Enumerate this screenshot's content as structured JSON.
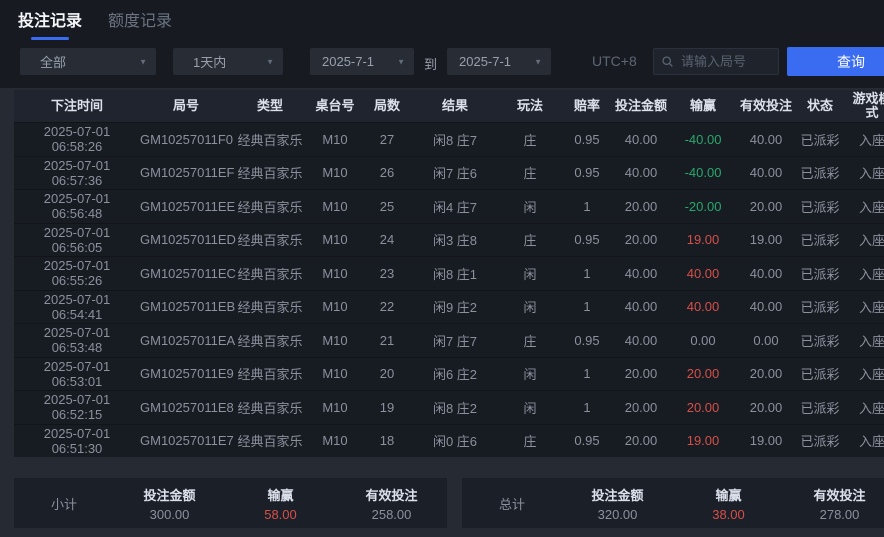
{
  "colors": {
    "accent": "#3a6cf2",
    "green": "#2aa76c",
    "red": "#d6504a"
  },
  "tabs": [
    {
      "label": "投注记录",
      "active": true
    },
    {
      "label": "额度记录",
      "active": false
    }
  ],
  "filters": {
    "type_select": "全部",
    "range_select": "1天内",
    "date_from": "2025-7-1",
    "to_label": "到",
    "date_to": "2025-7-1",
    "timezone": "UTC+8",
    "search_placeholder": "请输入局号",
    "query_button": "查询"
  },
  "table": {
    "headers": [
      "下注时间",
      "局号",
      "类型",
      "桌台号",
      "局数",
      "结果",
      "玩法",
      "赔率",
      "投注金额",
      "输赢",
      "有效投注",
      "状态",
      "游戏模式"
    ],
    "rows": [
      {
        "date": "2025-07-01",
        "time": "06:58:26",
        "game_no": "GM10257011F0",
        "type": "经典百家乐",
        "table_no": "M10",
        "round": "27",
        "result": "闲8 庄7",
        "play": "庄",
        "odds": "0.95",
        "bet": "40.00",
        "win": "-40.00",
        "win_tone": "green",
        "valid": "40.00",
        "status": "已派彩",
        "mode": "入座"
      },
      {
        "date": "2025-07-01",
        "time": "06:57:36",
        "game_no": "GM10257011EF",
        "type": "经典百家乐",
        "table_no": "M10",
        "round": "26",
        "result": "闲7 庄6",
        "play": "庄",
        "odds": "0.95",
        "bet": "40.00",
        "win": "-40.00",
        "win_tone": "green",
        "valid": "40.00",
        "status": "已派彩",
        "mode": "入座"
      },
      {
        "date": "2025-07-01",
        "time": "06:56:48",
        "game_no": "GM10257011EE",
        "type": "经典百家乐",
        "table_no": "M10",
        "round": "25",
        "result": "闲4 庄7",
        "play": "闲",
        "odds": "1",
        "bet": "20.00",
        "win": "-20.00",
        "win_tone": "green",
        "valid": "20.00",
        "status": "已派彩",
        "mode": "入座"
      },
      {
        "date": "2025-07-01",
        "time": "06:56:05",
        "game_no": "GM10257011ED",
        "type": "经典百家乐",
        "table_no": "M10",
        "round": "24",
        "result": "闲3 庄8",
        "play": "庄",
        "odds": "0.95",
        "bet": "20.00",
        "win": "19.00",
        "win_tone": "red",
        "valid": "19.00",
        "status": "已派彩",
        "mode": "入座"
      },
      {
        "date": "2025-07-01",
        "time": "06:55:26",
        "game_no": "GM10257011EC",
        "type": "经典百家乐",
        "table_no": "M10",
        "round": "23",
        "result": "闲8 庄1",
        "play": "闲",
        "odds": "1",
        "bet": "40.00",
        "win": "40.00",
        "win_tone": "red",
        "valid": "40.00",
        "status": "已派彩",
        "mode": "入座"
      },
      {
        "date": "2025-07-01",
        "time": "06:54:41",
        "game_no": "GM10257011EB",
        "type": "经典百家乐",
        "table_no": "M10",
        "round": "22",
        "result": "闲9 庄2",
        "play": "闲",
        "odds": "1",
        "bet": "40.00",
        "win": "40.00",
        "win_tone": "red",
        "valid": "40.00",
        "status": "已派彩",
        "mode": "入座"
      },
      {
        "date": "2025-07-01",
        "time": "06:53:48",
        "game_no": "GM10257011EA",
        "type": "经典百家乐",
        "table_no": "M10",
        "round": "21",
        "result": "闲7 庄7",
        "play": "庄",
        "odds": "0.95",
        "bet": "40.00",
        "win": "0.00",
        "win_tone": "neutral",
        "valid": "0.00",
        "status": "已派彩",
        "mode": "入座"
      },
      {
        "date": "2025-07-01",
        "time": "06:53:01",
        "game_no": "GM10257011E9",
        "type": "经典百家乐",
        "table_no": "M10",
        "round": "20",
        "result": "闲6 庄2",
        "play": "闲",
        "odds": "1",
        "bet": "20.00",
        "win": "20.00",
        "win_tone": "red",
        "valid": "20.00",
        "status": "已派彩",
        "mode": "入座"
      },
      {
        "date": "2025-07-01",
        "time": "06:52:15",
        "game_no": "GM10257011E8",
        "type": "经典百家乐",
        "table_no": "M10",
        "round": "19",
        "result": "闲8 庄2",
        "play": "闲",
        "odds": "1",
        "bet": "20.00",
        "win": "20.00",
        "win_tone": "red",
        "valid": "20.00",
        "status": "已派彩",
        "mode": "入座"
      },
      {
        "date": "2025-07-01",
        "time": "06:51:30",
        "game_no": "GM10257011E7",
        "type": "经典百家乐",
        "table_no": "M10",
        "round": "18",
        "result": "闲0 庄6",
        "play": "庄",
        "odds": "0.95",
        "bet": "20.00",
        "win": "19.00",
        "win_tone": "red",
        "valid": "19.00",
        "status": "已派彩",
        "mode": "入座"
      }
    ]
  },
  "summary": {
    "subtotal": {
      "label": "小计",
      "bet_label": "投注金额",
      "bet": "300.00",
      "win_label": "输赢",
      "win": "58.00",
      "valid_label": "有效投注",
      "valid": "258.00"
    },
    "total": {
      "label": "总计",
      "bet_label": "投注金额",
      "bet": "320.00",
      "win_label": "输赢",
      "win": "38.00",
      "valid_label": "有效投注",
      "valid": "278.00"
    }
  }
}
